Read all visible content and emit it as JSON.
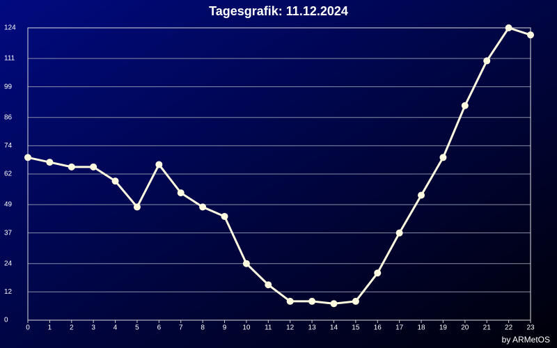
{
  "chart_data": {
    "type": "line",
    "title": "Tagesgrafik: 11.12.2024",
    "footer": "by ARMetOS",
    "x": [
      0,
      1,
      2,
      3,
      4,
      5,
      6,
      7,
      8,
      9,
      10,
      11,
      12,
      13,
      14,
      15,
      16,
      17,
      18,
      19,
      20,
      21,
      22,
      23
    ],
    "xlim": [
      0,
      23
    ],
    "xticks": [
      0,
      1,
      2,
      3,
      4,
      5,
      6,
      7,
      8,
      9,
      10,
      11,
      12,
      13,
      14,
      15,
      16,
      17,
      18,
      19,
      20,
      21,
      22,
      23
    ],
    "values": [
      69,
      67,
      65,
      65,
      59,
      48,
      66,
      54,
      48,
      44,
      24,
      15,
      8,
      8,
      7,
      8,
      20,
      37,
      53,
      69,
      91,
      110,
      124,
      121
    ],
    "color": "#fffbe0",
    "ylim": [
      0,
      124
    ],
    "yticks": [
      0,
      12,
      24,
      37,
      49,
      62,
      74,
      86,
      99,
      111,
      124
    ],
    "grid": true
  }
}
